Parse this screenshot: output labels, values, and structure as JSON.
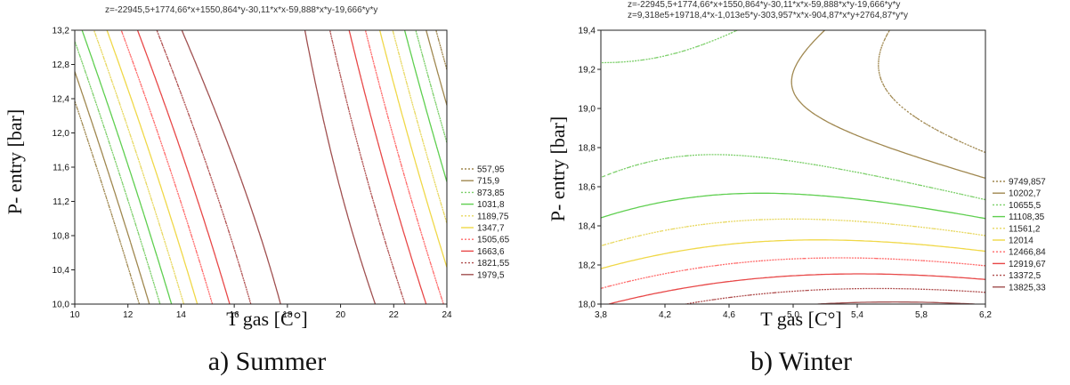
{
  "chart_data": [
    {
      "type": "contour",
      "panel_caption": "a) Summer",
      "formula": "z=-22945,5+1774,66*x+1550,864*y-30,11*x*x-59,888*x*y-19,666*y*y",
      "xlabel": "T  gas [C°]",
      "ylabel": "P- entry [bar]",
      "xlim": [
        10,
        24
      ],
      "ylim": [
        10.0,
        13.2
      ],
      "xticks": [
        "10",
        "12",
        "14",
        "16",
        "18",
        "20",
        "22",
        "24"
      ],
      "yticks": [
        "10,0",
        "10,4",
        "10,8",
        "11,2",
        "11,6",
        "12,0",
        "12,4",
        "12,8",
        "13,2"
      ],
      "legend": [
        {
          "label": "557,95",
          "color": "#a08850",
          "dash": "dot"
        },
        {
          "label": "715,9",
          "color": "#a08850",
          "dash": "solid"
        },
        {
          "label": "873,85",
          "color": "#7ccf6a",
          "dash": "dot"
        },
        {
          "label": "1031,8",
          "color": "#5fcf50",
          "dash": "solid"
        },
        {
          "label": "1189,75",
          "color": "#e8d860",
          "dash": "dot"
        },
        {
          "label": "1347,7",
          "color": "#f0d848",
          "dash": "solid"
        },
        {
          "label": "1505,65",
          "color": "#ff6b6b",
          "dash": "dot"
        },
        {
          "label": "1663,6",
          "color": "#e84848",
          "dash": "solid"
        },
        {
          "label": "1821,55",
          "color": "#b05050",
          "dash": "dot"
        },
        {
          "label": "1979,5",
          "color": "#a05050",
          "dash": "solid"
        }
      ]
    },
    {
      "type": "contour",
      "panel_caption": "b) Winter",
      "formula": "z=9,318e5+19718,4*x-1,013e5*y-303,957*x*x-904,87*x*y+2764,87*y*y",
      "formula_clipped": "z=-22945,5+1774,66*x+1550,864*y-30,11*x*x-59,888*x*y-19,666*y*y",
      "xlabel": "T  gas [C°]",
      "ylabel": "P- entry [bar]",
      "xlim": [
        3.8,
        6.2
      ],
      "ylim": [
        18.0,
        19.4
      ],
      "xticks": [
        "3,8",
        "4,2",
        "4,6",
        "5,0",
        "5,4",
        "5,8",
        "6,2"
      ],
      "yticks": [
        "18,0",
        "18,2",
        "18,4",
        "18,6",
        "18,8",
        "19,0",
        "19,2",
        "19,4"
      ],
      "legend": [
        {
          "label": "9749,857",
          "color": "#a08850",
          "dash": "dot"
        },
        {
          "label": "10202,7",
          "color": "#a08850",
          "dash": "solid"
        },
        {
          "label": "10655,5",
          "color": "#7ccf6a",
          "dash": "dot"
        },
        {
          "label": "11108,35",
          "color": "#5fcf50",
          "dash": "solid"
        },
        {
          "label": "11561,2",
          "color": "#e8d860",
          "dash": "dot"
        },
        {
          "label": "12014",
          "color": "#f0d848",
          "dash": "solid"
        },
        {
          "label": "12466,84",
          "color": "#ff6b6b",
          "dash": "dot"
        },
        {
          "label": "12919,67",
          "color": "#e84848",
          "dash": "solid"
        },
        {
          "label": "13372,5",
          "color": "#b05050",
          "dash": "dot"
        },
        {
          "label": "13825,33",
          "color": "#a05050",
          "dash": "solid"
        }
      ]
    }
  ]
}
